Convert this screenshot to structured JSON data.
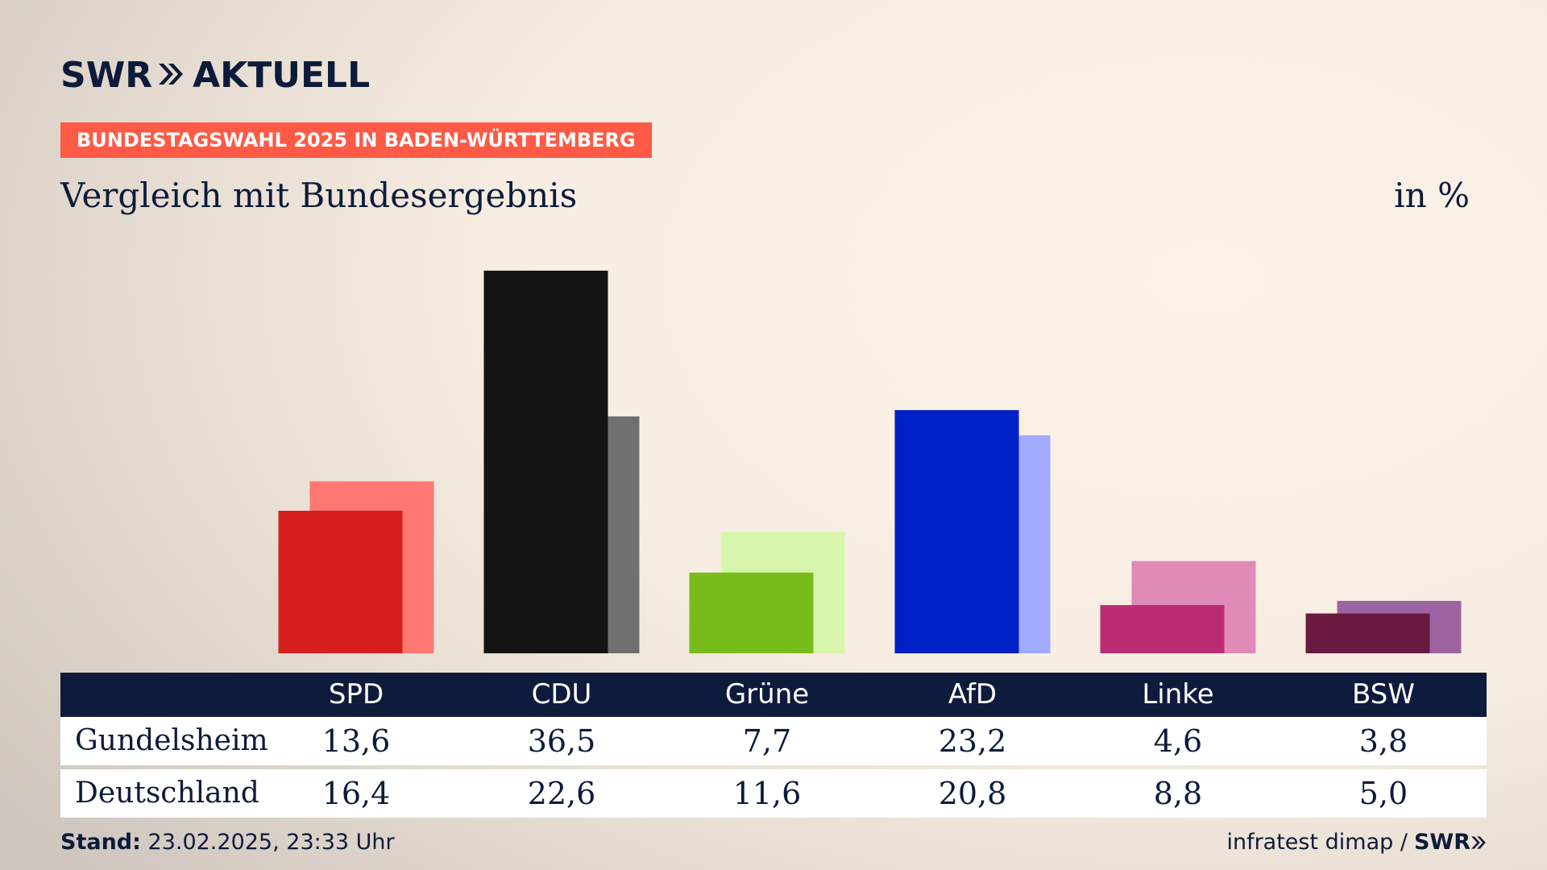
{
  "header": {
    "logo_text": "SWR",
    "logo_suffix": "AKTUELL",
    "kicker": "BUNDESTAGSWAHL 2025 IN BADEN-WÜRTTEMBERG",
    "subtitle": "Vergleich mit Bundesergebnis",
    "unit": "in %"
  },
  "colors": {
    "navy": "#0e1b3d",
    "kicker_bg": "#ff5a45"
  },
  "chart_data": {
    "type": "bar",
    "title": "Vergleich mit Bundesergebnis",
    "unit": "in %",
    "categories": [
      "SPD",
      "CDU",
      "Grüne",
      "AfD",
      "Linke",
      "BSW"
    ],
    "series": [
      {
        "name": "Gundelsheim",
        "values": [
          13.6,
          36.5,
          7.7,
          23.2,
          4.6,
          3.8
        ],
        "colors": [
          "#d62020",
          "#141414",
          "#78bc1c",
          "#0020c8",
          "#bc2c74",
          "#6a1a40"
        ]
      },
      {
        "name": "Deutschland",
        "values": [
          16.4,
          22.6,
          11.6,
          20.8,
          8.8,
          5.0
        ],
        "colors": [
          "#ff7770",
          "#707070",
          "#d8f6ab",
          "#a0abff",
          "#e08ab8",
          "#9c64a0"
        ]
      }
    ],
    "value_labels": {
      "Gundelsheim": [
        "13,6",
        "36,5",
        "7,7",
        "23,2",
        "4,6",
        "3,8"
      ],
      "Deutschland": [
        "16,4",
        "22,6",
        "11,6",
        "20,8",
        "8,8",
        "5,0"
      ]
    },
    "ylim": [
      0,
      36.5
    ],
    "grid": false,
    "legend": "table below chart"
  },
  "footer": {
    "stand_label": "Stand:",
    "stand_value": "23.02.2025, 23:33 Uhr",
    "source": "infratest dimap /",
    "source_logo": "SWR"
  }
}
